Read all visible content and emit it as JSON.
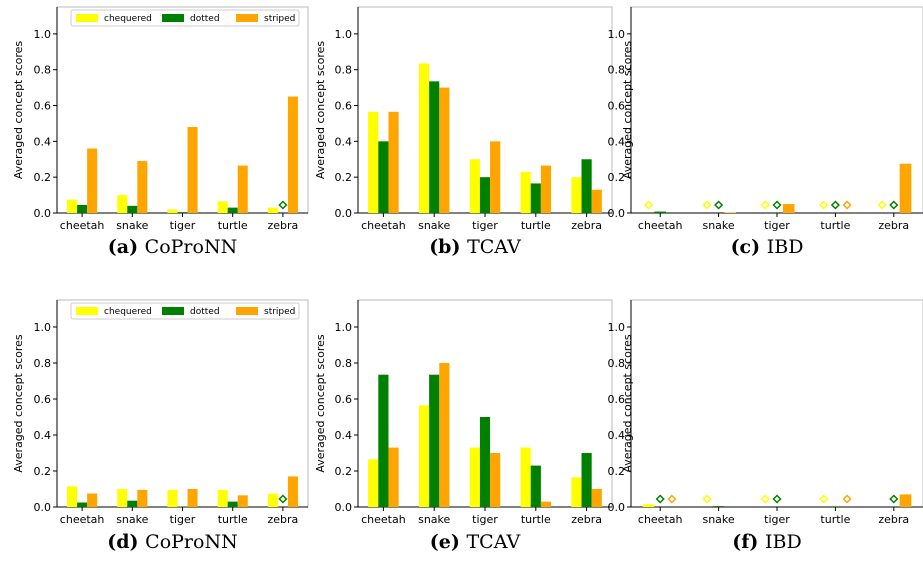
{
  "colors": {
    "chequered": "#ffff00",
    "dotted": "#008000",
    "striped": "#ffa500"
  },
  "chart_data": [
    {
      "type": "bar",
      "caption_label": "(a)",
      "caption_method": "CoProNN",
      "ylabel": "Averaged concept scores",
      "ylim": [
        0,
        1.15
      ],
      "yticks": [
        "0.0",
        "0.2",
        "0.4",
        "0.6",
        "0.8",
        "1.0"
      ],
      "categories": [
        "cheetah",
        "snake",
        "tiger",
        "turtle",
        "zebra"
      ],
      "legend": {
        "placement": "top",
        "entries": [
          "chequered",
          "dotted",
          "striped"
        ]
      },
      "series": [
        {
          "name": "chequered",
          "values": [
            0.075,
            0.1,
            0.02,
            0.065,
            0.03
          ]
        },
        {
          "name": "dotted",
          "values": [
            0.045,
            0.04,
            0.005,
            0.03,
            0
          ]
        },
        {
          "name": "striped",
          "values": [
            0.36,
            0.29,
            0.48,
            0.265,
            0.65
          ]
        }
      ],
      "zero_markers": [
        {
          "category": "zebra",
          "series": "dotted"
        }
      ]
    },
    {
      "type": "bar",
      "caption_label": "(b)",
      "caption_method": "TCAV",
      "ylabel": "Averaged concept scores",
      "ylim": [
        0,
        1.15
      ],
      "yticks": [
        "0.0",
        "0.2",
        "0.4",
        "0.6",
        "0.8",
        "1.0"
      ],
      "categories": [
        "cheetah",
        "snake",
        "tiger",
        "turtle",
        "zebra"
      ],
      "series": [
        {
          "name": "chequered",
          "values": [
            0.565,
            0.835,
            0.3,
            0.23,
            0.2
          ]
        },
        {
          "name": "dotted",
          "values": [
            0.4,
            0.735,
            0.2,
            0.165,
            0.3
          ]
        },
        {
          "name": "striped",
          "values": [
            0.565,
            0.7,
            0.4,
            0.265,
            0.13
          ]
        }
      ],
      "zero_markers": []
    },
    {
      "type": "bar",
      "caption_label": "(c)",
      "caption_method": "IBD",
      "ylabel": "Averaged concept scores",
      "ylim": [
        0,
        1.15
      ],
      "yticks": [
        "0.0",
        "0.2",
        "0.4",
        "0.6",
        "0.8",
        "1.0"
      ],
      "categories": [
        "cheetah",
        "snake",
        "tiger",
        "turtle",
        "zebra"
      ],
      "series": [
        {
          "name": "chequered",
          "values": [
            0,
            0,
            0,
            0,
            0
          ]
        },
        {
          "name": "dotted",
          "values": [
            0.008,
            0,
            0,
            0,
            0
          ]
        },
        {
          "name": "striped",
          "values": [
            0,
            0.003,
            0.05,
            0,
            0.275
          ]
        }
      ],
      "zero_markers": [
        {
          "category": "cheetah",
          "series": "chequered"
        },
        {
          "category": "snake",
          "series": "chequered"
        },
        {
          "category": "snake",
          "series": "dotted"
        },
        {
          "category": "tiger",
          "series": "chequered"
        },
        {
          "category": "tiger",
          "series": "dotted"
        },
        {
          "category": "turtle",
          "series": "chequered"
        },
        {
          "category": "turtle",
          "series": "dotted"
        },
        {
          "category": "turtle",
          "series": "striped"
        },
        {
          "category": "zebra",
          "series": "chequered"
        },
        {
          "category": "zebra",
          "series": "dotted"
        }
      ]
    },
    {
      "type": "bar",
      "caption_label": "(d)",
      "caption_method": "CoProNN",
      "ylabel": "Averaged concept scores",
      "ylim": [
        0,
        1.15
      ],
      "yticks": [
        "0.0",
        "0.2",
        "0.4",
        "0.6",
        "0.8",
        "1.0"
      ],
      "categories": [
        "cheetah",
        "snake",
        "tiger",
        "turtle",
        "zebra"
      ],
      "legend": {
        "placement": "top",
        "entries": [
          "chequered",
          "dotted",
          "striped"
        ]
      },
      "series": [
        {
          "name": "chequered",
          "values": [
            0.115,
            0.1,
            0.095,
            0.095,
            0.075
          ]
        },
        {
          "name": "dotted",
          "values": [
            0.025,
            0.035,
            0.002,
            0.03,
            0
          ]
        },
        {
          "name": "striped",
          "values": [
            0.075,
            0.095,
            0.1,
            0.065,
            0.17
          ]
        }
      ],
      "zero_markers": [
        {
          "category": "zebra",
          "series": "dotted"
        }
      ]
    },
    {
      "type": "bar",
      "caption_label": "(e)",
      "caption_method": "TCAV",
      "ylabel": "Averaged concept scores",
      "ylim": [
        0,
        1.15
      ],
      "yticks": [
        "0.0",
        "0.2",
        "0.4",
        "0.6",
        "0.8",
        "1.0"
      ],
      "categories": [
        "cheetah",
        "snake",
        "tiger",
        "turtle",
        "zebra"
      ],
      "series": [
        {
          "name": "chequered",
          "values": [
            0.265,
            0.565,
            0.33,
            0.33,
            0.165
          ]
        },
        {
          "name": "dotted",
          "values": [
            0.735,
            0.735,
            0.5,
            0.23,
            0.3
          ]
        },
        {
          "name": "striped",
          "values": [
            0.33,
            0.8,
            0.3,
            0.03,
            0.1
          ]
        }
      ],
      "zero_markers": []
    },
    {
      "type": "bar",
      "caption_label": "(f)",
      "caption_method": "IBD",
      "ylabel": "Averaged concept scores",
      "ylim": [
        0,
        1.15
      ],
      "yticks": [
        "0.0",
        "0.2",
        "0.4",
        "0.6",
        "0.8",
        "1.0"
      ],
      "categories": [
        "cheetah",
        "snake",
        "tiger",
        "turtle",
        "zebra"
      ],
      "series": [
        {
          "name": "chequered",
          "values": [
            0.015,
            0,
            0,
            0,
            0
          ]
        },
        {
          "name": "dotted",
          "values": [
            0,
            0.005,
            0,
            0.004,
            0
          ]
        },
        {
          "name": "striped",
          "values": [
            0,
            0,
            0,
            0,
            0.07
          ]
        }
      ],
      "zero_markers": [
        {
          "category": "cheetah",
          "series": "dotted"
        },
        {
          "category": "cheetah",
          "series": "striped"
        },
        {
          "category": "snake",
          "series": "chequered"
        },
        {
          "category": "tiger",
          "series": "chequered"
        },
        {
          "category": "tiger",
          "series": "dotted"
        },
        {
          "category": "turtle",
          "series": "chequered"
        },
        {
          "category": "turtle",
          "series": "striped"
        },
        {
          "category": "zebra",
          "series": "dotted"
        }
      ]
    }
  ]
}
